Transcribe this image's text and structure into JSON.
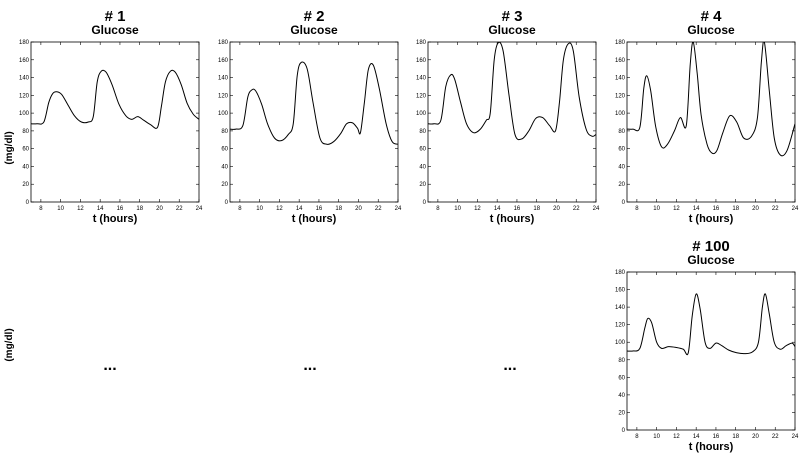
{
  "figure": {
    "ylabel": "(mg/dl)",
    "ellipsis": "..."
  },
  "chart_data": [
    {
      "type": "line",
      "title": "# 1",
      "subtitle": "Glucose",
      "xlabel": "t (hours)",
      "xlim": [
        7,
        24
      ],
      "ylim": [
        0,
        180
      ],
      "xticks": [
        8,
        10,
        12,
        14,
        16,
        18,
        20,
        22,
        24
      ],
      "yticks": [
        0,
        20,
        40,
        60,
        80,
        100,
        120,
        140,
        160,
        180
      ],
      "series": [
        {
          "x": [
            7,
            7.6,
            8.3,
            8.8,
            9.2,
            9.6,
            10.1,
            10.7,
            11.4,
            12.1,
            12.8,
            13.3,
            13.7,
            14.1,
            14.6,
            15.2,
            15.9,
            16.6,
            17.2,
            17.8,
            18.4,
            19.1,
            19.8,
            20.2,
            20.6,
            21.1,
            21.6,
            22.2,
            22.8,
            23.4,
            24
          ],
          "y": [
            88,
            88,
            90,
            112,
            122,
            124,
            121,
            110,
            97,
            90,
            90,
            96,
            135,
            147,
            146,
            132,
            110,
            97,
            93,
            96,
            92,
            87,
            84,
            108,
            135,
            147,
            146,
            132,
            111,
            99,
            93
          ]
        }
      ]
    },
    {
      "type": "line",
      "title": "# 2",
      "subtitle": "Glucose",
      "xlabel": "t (hours)",
      "xlim": [
        7,
        24
      ],
      "ylim": [
        0,
        180
      ],
      "xticks": [
        8,
        10,
        12,
        14,
        16,
        18,
        20,
        22,
        24
      ],
      "yticks": [
        0,
        20,
        40,
        60,
        80,
        100,
        120,
        140,
        160,
        180
      ],
      "series": [
        {
          "x": [
            7,
            7.6,
            8.3,
            8.8,
            9.2,
            9.6,
            10.2,
            10.8,
            11.5,
            12.2,
            12.9,
            13.4,
            13.8,
            14.2,
            14.8,
            15.4,
            16.1,
            16.8,
            17.5,
            18.2,
            18.8,
            19.4,
            19.9,
            20.2,
            20.6,
            21.0,
            21.5,
            22.1,
            22.8,
            23.4,
            24
          ],
          "y": [
            82,
            82,
            86,
            118,
            126,
            125,
            110,
            88,
            72,
            69,
            76,
            88,
            142,
            157,
            150,
            112,
            72,
            65,
            68,
            77,
            88,
            89,
            83,
            78,
            112,
            149,
            154,
            128,
            88,
            68,
            65
          ]
        }
      ]
    },
    {
      "type": "line",
      "title": "# 3",
      "subtitle": "Glucose",
      "xlabel": "t (hours)",
      "xlim": [
        7,
        24
      ],
      "ylim": [
        0,
        180
      ],
      "xticks": [
        8,
        10,
        12,
        14,
        16,
        18,
        20,
        22,
        24
      ],
      "yticks": [
        0,
        20,
        40,
        60,
        80,
        100,
        120,
        140,
        160,
        180
      ],
      "series": [
        {
          "x": [
            7,
            7.6,
            8.3,
            8.8,
            9.3,
            9.7,
            10.3,
            10.9,
            11.6,
            12.3,
            12.9,
            13.3,
            13.7,
            14.1,
            14.6,
            15.2,
            15.8,
            16.5,
            17.2,
            17.9,
            18.6,
            19.3,
            19.9,
            20.3,
            20.7,
            21.2,
            21.7,
            22.3,
            23.0,
            23.6,
            24
          ],
          "y": [
            88,
            88,
            92,
            130,
            143,
            138,
            112,
            88,
            78,
            82,
            92,
            100,
            160,
            179,
            170,
            120,
            76,
            71,
            80,
            94,
            95,
            86,
            80,
            112,
            160,
            178,
            170,
            118,
            82,
            74,
            76
          ]
        }
      ]
    },
    {
      "type": "line",
      "title": "# 4",
      "subtitle": "Glucose",
      "xlabel": "t (hours)",
      "xlim": [
        7,
        24
      ],
      "ylim": [
        0,
        180
      ],
      "xticks": [
        8,
        10,
        12,
        14,
        16,
        18,
        20,
        22,
        24
      ],
      "yticks": [
        0,
        20,
        40,
        60,
        80,
        100,
        120,
        140,
        160,
        180
      ],
      "series": [
        {
          "x": [
            7,
            7.6,
            8.3,
            8.7,
            9.0,
            9.4,
            9.9,
            10.5,
            11.1,
            11.8,
            12.4,
            13.0,
            13.4,
            13.7,
            14.1,
            14.5,
            15.1,
            15.6,
            16.1,
            16.7,
            17.4,
            18.1,
            18.8,
            19.6,
            20.2,
            20.6,
            20.9,
            21.4,
            21.9,
            22.5,
            23.2,
            24
          ],
          "y": [
            82,
            82,
            84,
            128,
            142,
            125,
            85,
            62,
            65,
            80,
            95,
            86,
            155,
            180,
            145,
            98,
            65,
            55,
            58,
            78,
            97,
            90,
            72,
            74,
            95,
            158,
            180,
            125,
            72,
            53,
            58,
            88
          ]
        }
      ]
    },
    {
      "type": "line",
      "title": "# 100",
      "subtitle": "Glucose",
      "xlabel": "t (hours)",
      "xlim": [
        7,
        24
      ],
      "ylim": [
        0,
        180
      ],
      "xticks": [
        8,
        10,
        12,
        14,
        16,
        18,
        20,
        22,
        24
      ],
      "yticks": [
        0,
        20,
        40,
        60,
        80,
        100,
        120,
        140,
        160,
        180
      ],
      "series": [
        {
          "x": [
            7,
            7.6,
            8.3,
            8.8,
            9.1,
            9.5,
            10.0,
            10.5,
            11.2,
            12.0,
            12.7,
            13.2,
            13.6,
            14.0,
            14.4,
            14.9,
            15.4,
            16.0,
            16.6,
            17.3,
            18.1,
            18.9,
            19.7,
            20.3,
            20.7,
            21.0,
            21.4,
            21.9,
            22.5,
            23.1,
            23.7,
            24
          ],
          "y": [
            90,
            90,
            93,
            116,
            127,
            122,
            100,
            93,
            95,
            94,
            92,
            88,
            130,
            155,
            138,
            100,
            93,
            99,
            96,
            91,
            88,
            87,
            89,
            100,
            140,
            155,
            132,
            100,
            92,
            96,
            99,
            95
          ]
        }
      ]
    }
  ]
}
